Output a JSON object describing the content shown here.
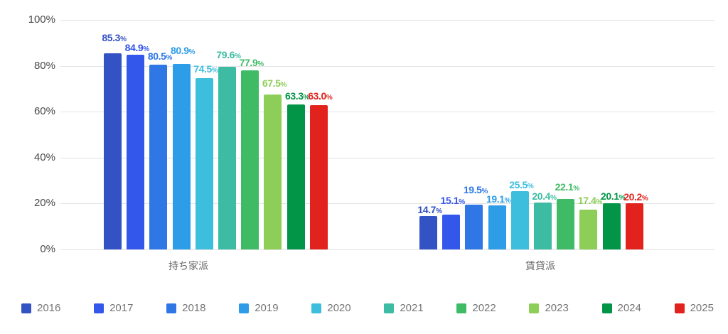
{
  "chart_data": {
    "type": "bar",
    "title": "",
    "categories": [
      "持ち家派",
      "賃貸派"
    ],
    "ylim": [
      0,
      100
    ],
    "yticks": [
      {
        "label": "100%",
        "value": 100
      },
      {
        "label": "80%",
        "value": 80
      },
      {
        "label": "60%",
        "value": 60
      },
      {
        "label": "40%",
        "value": 40
      },
      {
        "label": "20%",
        "value": 20
      },
      {
        "label": "0%",
        "value": 0
      }
    ],
    "grid": true,
    "legend_position": "bottom",
    "value_suffix": "%",
    "series": [
      {
        "name": "2016",
        "color": "#3352C4",
        "values": [
          85.3,
          14.7
        ]
      },
      {
        "name": "2017",
        "color": "#3356EB",
        "values": [
          84.9,
          15.1
        ]
      },
      {
        "name": "2018",
        "color": "#2E77E5",
        "values": [
          80.5,
          19.5
        ]
      },
      {
        "name": "2019",
        "color": "#2D9DE8",
        "values": [
          80.9,
          19.1
        ]
      },
      {
        "name": "2020",
        "color": "#3DBEDD",
        "values": [
          74.5,
          25.5
        ]
      },
      {
        "name": "2021",
        "color": "#3DBCA3",
        "values": [
          79.6,
          20.4
        ]
      },
      {
        "name": "2022",
        "color": "#3FBB66",
        "values": [
          77.9,
          22.1
        ]
      },
      {
        "name": "2023",
        "color": "#8DCE58",
        "values": [
          67.5,
          17.4
        ]
      },
      {
        "name": "2024",
        "color": "#029447",
        "values": [
          63.3,
          20.1
        ]
      },
      {
        "name": "2025",
        "color": "#E2231D",
        "values": [
          63.0,
          20.2
        ]
      }
    ]
  }
}
